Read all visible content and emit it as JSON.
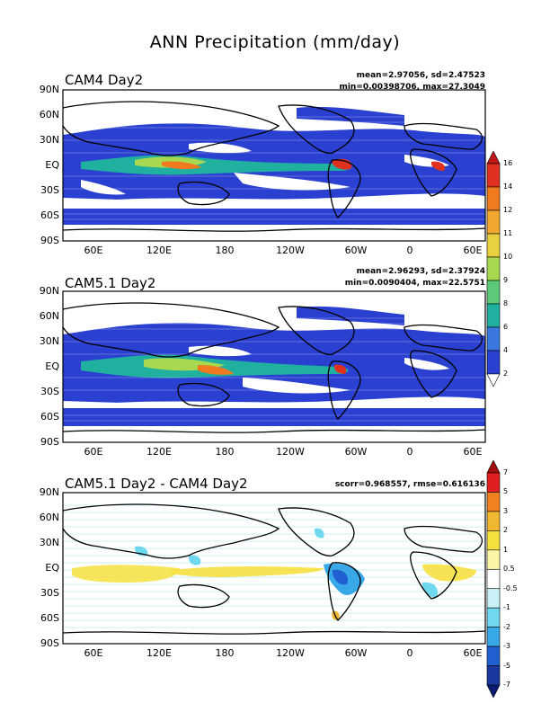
{
  "title": "ANN Precipitation (mm/day)",
  "lat_labels": [
    "90N",
    "60N",
    "30N",
    "EQ",
    "30S",
    "60S",
    "90S"
  ],
  "lon_labels": [
    "60E",
    "120E",
    "180",
    "120W",
    "60W",
    "0",
    "60E"
  ],
  "panels": [
    {
      "title": "CAM4 Day2",
      "stats_line1": "mean=2.97056, sd=2.47523",
      "stats_line2": "min=0.00398706, max=27.3049"
    },
    {
      "title": "CAM5.1 Day2",
      "stats_line1": "mean=2.96293, sd=2.37924",
      "stats_line2": "min=0.0090404, max=22.5751"
    },
    {
      "title": "CAM5.1 Day2 - CAM4 Day2",
      "stats_line1": "scorr=0.968557, rmse=0.616136",
      "stats_line2": ""
    }
  ],
  "colorbar_precip": {
    "labels": [
      "16",
      "14",
      "12",
      "11",
      "10",
      "9",
      "8",
      "6",
      "4",
      "2"
    ],
    "colors": [
      "#c01818",
      "#e03020",
      "#f07a20",
      "#f2a830",
      "#e8d040",
      "#a8d850",
      "#5cc878",
      "#20b0a0",
      "#3a78e0",
      "#2a40d0",
      "#ffffff"
    ]
  },
  "colorbar_diff": {
    "labels": [
      "7",
      "5",
      "3",
      "2",
      "1",
      "0.5",
      "-0.5",
      "-1",
      "-2",
      "-3",
      "-5",
      "-7"
    ],
    "colors": [
      "#a01010",
      "#e02020",
      "#f08020",
      "#f0b830",
      "#f6e040",
      "#fbf5a8",
      "#ffffff",
      "#c8f0f6",
      "#70d8ee",
      "#38a8e8",
      "#2060d0",
      "#1838a0",
      "#0a1a70"
    ]
  }
}
